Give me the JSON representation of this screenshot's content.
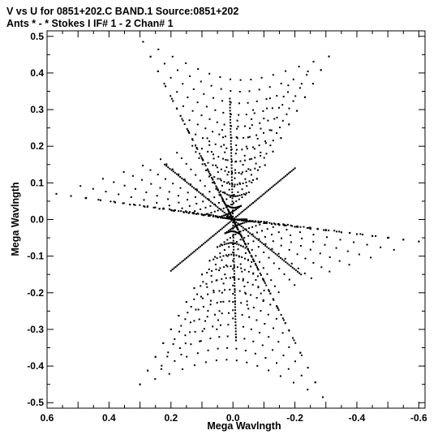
{
  "chart_data": {
    "type": "scatter",
    "title": "V vs U for 0851+202.C BAND.1   Source:0851+202",
    "subtitle": "Ants * - *    Stokes I  IF# 1 - 2  Chan# 1",
    "xlabel": "Mega Wavlngth",
    "ylabel": "Mega Wavlngth",
    "xlim": [
      0.6,
      -0.62
    ],
    "ylim": [
      -0.515,
      0.515
    ],
    "x_ticks": [
      0.6,
      0.4,
      0.2,
      0.0,
      -0.2,
      -0.4,
      -0.6
    ],
    "x_tick_labels": [
      "0.6",
      "0.4",
      "0.2",
      "0.0",
      "-0.2",
      "-0.4",
      "-0.6"
    ],
    "y_ticks": [
      0.5,
      0.4,
      0.3,
      0.2,
      0.1,
      0.0,
      -0.1,
      -0.2,
      -0.3,
      -0.4,
      -0.5
    ],
    "y_tick_labels": [
      "0.5",
      "0.4",
      "0.3",
      "0.2",
      "0.1",
      "0.0",
      "-0.1",
      "-0.2",
      "-0.3",
      "-0.4",
      "-0.5"
    ],
    "grid": false,
    "legend": "none",
    "marker_color": "#000000",
    "pattern": "six-armed star of concentric uv-track arcs (hour-angle sampled), point-symmetric about the origin",
    "arm_tips": [
      {
        "u": 0.29,
        "v": 0.485
      },
      {
        "u": -0.31,
        "v": 0.445
      },
      {
        "u": 0.57,
        "v": 0.07
      },
      {
        "u": -0.6,
        "v": -0.06
      },
      {
        "u": 0.3,
        "v": -0.45
      },
      {
        "u": -0.29,
        "v": -0.485
      }
    ]
  }
}
